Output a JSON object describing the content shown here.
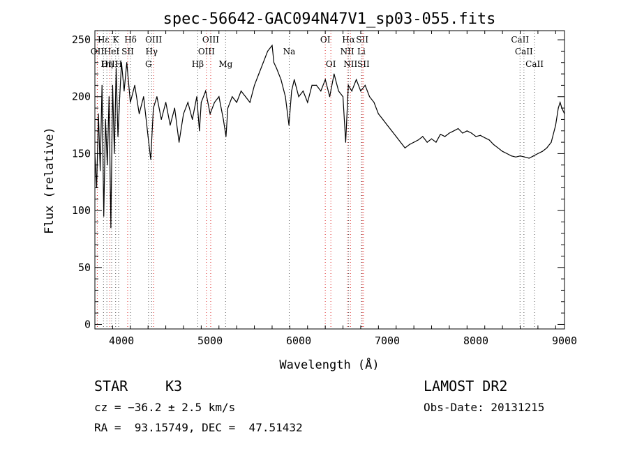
{
  "chart_data": {
    "type": "line",
    "title": "spec-56642-GAC094N47V1_sp03-055.fits",
    "xlabel": "Wavelength (Å)",
    "ylabel": "Flux (relative)",
    "xlim": [
      3700,
      9000
    ],
    "ylim": [
      -4,
      258
    ],
    "xticks": [
      4000,
      5000,
      6000,
      7000,
      8000,
      9000
    ],
    "yticks": [
      0,
      50,
      100,
      150,
      200,
      250
    ],
    "grid": false,
    "legend": "none",
    "series": [
      {
        "x": [
          3700,
          3720,
          3740,
          3760,
          3780,
          3800,
          3820,
          3840,
          3860,
          3880,
          3900,
          3920,
          3940,
          3960,
          3980,
          4000,
          4030,
          4060,
          4100,
          4150,
          4200,
          4250,
          4300,
          4330,
          4360,
          4400,
          4450,
          4500,
          4550,
          4600,
          4650,
          4700,
          4750,
          4800,
          4850,
          4880,
          4900,
          4950,
          5000,
          5050,
          5100,
          5150,
          5180,
          5200,
          5250,
          5300,
          5350,
          5400,
          5450,
          5500,
          5550,
          5600,
          5650,
          5700,
          5720,
          5750,
          5800,
          5850,
          5890,
          5920,
          5950,
          6000,
          6050,
          6100,
          6150,
          6200,
          6250,
          6300,
          6350,
          6400,
          6450,
          6500,
          6530,
          6560,
          6600,
          6650,
          6700,
          6750,
          6800,
          6850,
          6900,
          6950,
          7000,
          7050,
          7100,
          7150,
          7200,
          7250,
          7300,
          7350,
          7400,
          7450,
          7500,
          7550,
          7600,
          7650,
          7700,
          7750,
          7800,
          7850,
          7900,
          7950,
          8000,
          8050,
          8100,
          8150,
          8200,
          8250,
          8300,
          8350,
          8400,
          8450,
          8500,
          8550,
          8600,
          8650,
          8700,
          8750,
          8800,
          8850,
          8900,
          8930,
          8950,
          8970,
          9000
        ],
        "y": [
          150,
          120,
          185,
          135,
          210,
          95,
          180,
          140,
          200,
          85,
          210,
          150,
          225,
          165,
          200,
          230,
          205,
          230,
          195,
          210,
          185,
          200,
          165,
          145,
          190,
          200,
          180,
          195,
          175,
          190,
          160,
          185,
          195,
          180,
          200,
          170,
          195,
          205,
          185,
          195,
          200,
          180,
          165,
          190,
          200,
          195,
          205,
          200,
          195,
          210,
          220,
          230,
          240,
          245,
          230,
          225,
          215,
          200,
          175,
          205,
          215,
          200,
          205,
          195,
          210,
          210,
          205,
          215,
          200,
          220,
          205,
          200,
          160,
          210,
          205,
          215,
          205,
          210,
          200,
          195,
          185,
          180,
          175,
          170,
          165,
          160,
          155,
          158,
          160,
          162,
          165,
          160,
          163,
          160,
          167,
          165,
          168,
          170,
          172,
          168,
          170,
          168,
          165,
          166,
          164,
          162,
          158,
          155,
          152,
          150,
          148,
          147,
          148,
          147,
          146,
          148,
          150,
          152,
          155,
          160,
          175,
          190,
          195,
          190,
          185
        ]
      }
    ],
    "line_markers": [
      {
        "label": "Hε",
        "x": 3797,
        "row": 0,
        "color": "gray"
      },
      {
        "label": "K",
        "x": 3934,
        "row": 0,
        "color": "gray"
      },
      {
        "label": "Hδ",
        "x": 4102,
        "row": 0,
        "color": "gray"
      },
      {
        "label": "OIII",
        "x": 4363,
        "row": 0,
        "color": "red"
      },
      {
        "label": "OIII",
        "x": 5007,
        "row": 0,
        "color": "red"
      },
      {
        "label": "OI",
        "x": 6300,
        "row": 0,
        "color": "red"
      },
      {
        "label": "Hα",
        "x": 6563,
        "row": 0,
        "color": "gray"
      },
      {
        "label": "SII",
        "x": 6717,
        "row": 0,
        "color": "red"
      },
      {
        "label": "CaII",
        "x": 8498,
        "row": 0,
        "color": "gray"
      },
      {
        "label": "OII",
        "x": 3727,
        "row": 1,
        "color": "red"
      },
      {
        "label": "HeI",
        "x": 3889,
        "row": 1,
        "color": "gray"
      },
      {
        "label": "SII",
        "x": 4070,
        "row": 1,
        "color": "red"
      },
      {
        "label": "Hγ",
        "x": 4340,
        "row": 1,
        "color": "gray"
      },
      {
        "label": "OIII",
        "x": 4959,
        "row": 1,
        "color": "red"
      },
      {
        "label": "Na",
        "x": 5893,
        "row": 1,
        "color": "gray"
      },
      {
        "label": "NII",
        "x": 6548,
        "row": 1,
        "color": "red"
      },
      {
        "label": "Li",
        "x": 6708,
        "row": 1,
        "color": "gray"
      },
      {
        "label": "CaII",
        "x": 8542,
        "row": 1,
        "color": "gray"
      },
      {
        "label": "OIII",
        "x": 3869,
        "row": 2,
        "color": "red"
      },
      {
        "label": "Hη",
        "x": 3835,
        "row": 2,
        "color": "gray"
      },
      {
        "label": "H",
        "x": 3968,
        "row": 2,
        "color": "gray"
      },
      {
        "label": "G",
        "x": 4305,
        "row": 2,
        "color": "gray"
      },
      {
        "label": "Hβ",
        "x": 4861,
        "row": 2,
        "color": "gray"
      },
      {
        "label": "Mg",
        "x": 5175,
        "row": 2,
        "color": "gray"
      },
      {
        "label": "OI",
        "x": 6363,
        "row": 2,
        "color": "red"
      },
      {
        "label": "NII",
        "x": 6584,
        "row": 2,
        "color": "red"
      },
      {
        "label": "SII",
        "x": 6731,
        "row": 2,
        "color": "red"
      },
      {
        "label": "CaII",
        "x": 8662,
        "row": 2,
        "color": "gray"
      }
    ]
  },
  "info": {
    "class_label": "STAR",
    "subclass": "K3",
    "survey": "LAMOST DR2",
    "cz": "cz = −36.2 ± 2.5 km/s",
    "obs_date": "Obs-Date: 20131215",
    "radec": "RA =  93.15749, DEC =  47.51432"
  }
}
